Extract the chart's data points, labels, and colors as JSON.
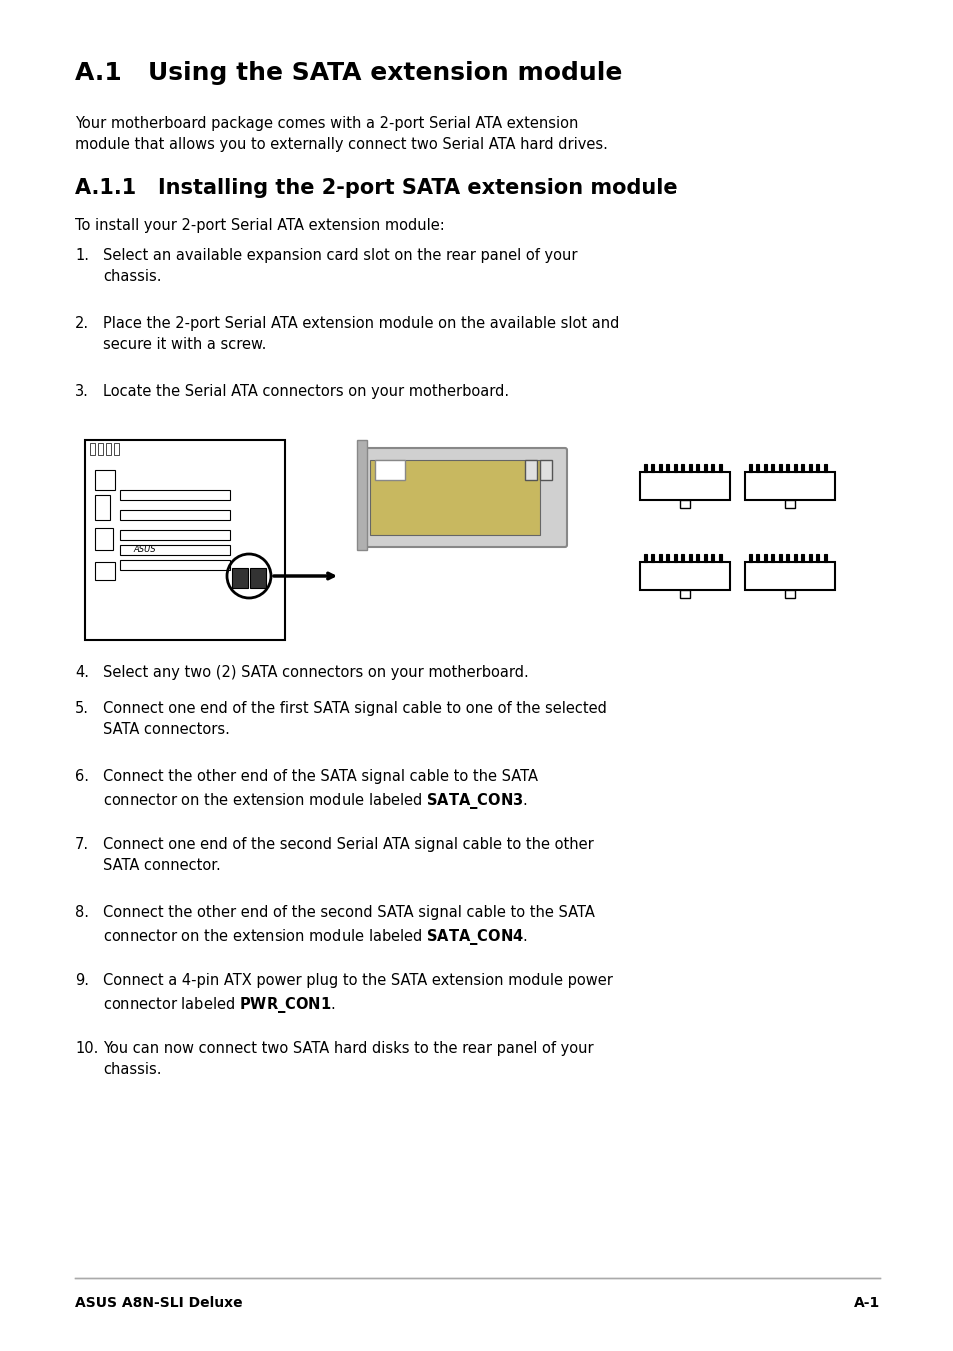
{
  "title": "A.1   Using the SATA extension module",
  "subtitle": "Your motherboard package comes with a 2-port Serial ATA extension\nmodule that allows you to externally connect two Serial ATA hard drives.",
  "section2": "A.1.1   Installing the 2-port SATA extension module",
  "intro2": "To install your 2-port Serial ATA extension module:",
  "steps": [
    "Select an available expansion card slot on the rear panel of your\nchassis.",
    "Place the 2-port Serial ATA extension module on the available slot and\nsecure it with a screw.",
    "Locate the Serial ATA connectors on your motherboard.",
    "Select any two (2) SATA connectors on your motherboard.",
    "Connect one end of the first SATA signal cable to one of the selected\nSATA connectors.",
    "Connect the other end of the SATA signal cable to the SATA\nconnector on the extension module labeled $\\mathbf{SATA\\_CON3}$.",
    "Connect one end of the second Serial ATA signal cable to the other\nSATA connector.",
    "Connect the other end of the second SATA signal cable to the SATA\nconnector on the extension module labeled $\\mathbf{SATA\\_CON4}$.",
    "Connect a 4-pin ATX power plug to the SATA extension module power\nconnector labeled $\\mathbf{PWR\\_CON1}$.",
    "You can now connect two SATA hard disks to the rear panel of your\nchassis."
  ],
  "footer_left": "ASUS A8N-SLI Deluxe",
  "footer_right": "A-1",
  "bg_color": "#ffffff",
  "text_color": "#000000",
  "title_fontsize": 18,
  "section2_fontsize": 15,
  "body_fontsize": 10.5,
  "footer_fontsize": 10
}
